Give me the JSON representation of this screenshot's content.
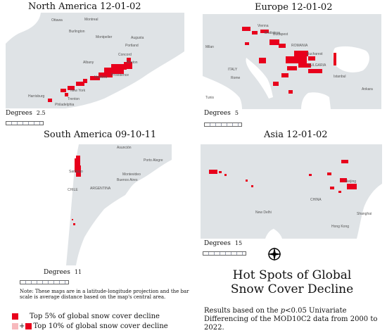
{
  "panels": [
    {
      "title": "North America   12-01-02",
      "degrees_label": "Degrees",
      "degrees_value": "2.5",
      "places": [
        "Ottawa",
        "Montreal",
        "Burlington",
        "Montpelier",
        "Augusta",
        "Portland",
        "Concord",
        "Albany",
        "Boston",
        "Hartford",
        "Providence",
        "New York",
        "Harrisburg",
        "Trenton",
        "Philadelphia"
      ]
    },
    {
      "title": "Europe 12-01-02",
      "degrees_label": "Degrees",
      "degrees_value": "5",
      "places": [
        "Vienna",
        "Bratislava",
        "Budapest",
        "Milan",
        "ROMANIA",
        "Bucharest",
        "ITALY",
        "BULGARIA",
        "Rome",
        "Istanbul",
        "Tunis",
        "Ankara"
      ]
    },
    {
      "title": "South America   09-10-11",
      "degrees_label": "Degrees",
      "degrees_value": "11",
      "places": [
        "Asunción",
        "Porto Alegre",
        "Santiago",
        "Buenos Aires",
        "Montevideo",
        "ARGENTINA",
        "CHILE"
      ]
    },
    {
      "title": "Asia 12-01-02",
      "degrees_label": "Degrees",
      "degrees_value": "15",
      "places": [
        "Beijing",
        "New Delhi",
        "CHINA",
        "Shanghai",
        "Hong Kong"
      ]
    }
  ],
  "note": "Note: These maps are in a latitude-longitude projection and the bar scale is average distance based on the map's central area.",
  "title_line1": "Hot Spots of Global",
  "title_line2": "Snow Cover Decline",
  "results": {
    "before": "Results based on the ",
    "italic": "p",
    "after": "<0.05 Univariate Differencing of the MOD10C2 data from 2000 to 2022."
  },
  "legend": [
    {
      "label": "Top 5% of global snow cover decline",
      "color": "#e8001c"
    },
    {
      "label": "Top 10% of global snow cover decline",
      "color": "#f7b9bd",
      "plus": "+"
    }
  ],
  "colors": {
    "land": "#dfe3e6",
    "water": "#ffffff",
    "hotspot": "#e8001c"
  },
  "icons": [
    "compass-rose-icon"
  ]
}
